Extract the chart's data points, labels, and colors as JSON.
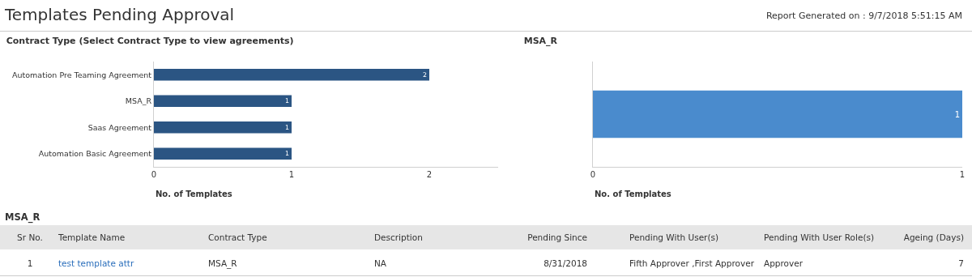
{
  "chart_data": [
    {
      "type": "other",
      "title": "Templates Pending Approval",
      "annotations": [
        "Report Generated on : 9/7/2018 5:51:15 AM"
      ]
    },
    {
      "type": "bar",
      "orientation": "horizontal",
      "title": "Contract Type (Select Contract Type to view agreements)",
      "categories": [
        "Automation Pre Teaming Agreement",
        "MSA_R",
        "Saas Agreement",
        "Automation Basic Agreement"
      ],
      "values": [
        2,
        1,
        1,
        1
      ],
      "color": "#2b5583",
      "xlim": [
        0,
        2.5
      ],
      "xticks": [
        0,
        1,
        2
      ],
      "xlabel": "No. of Templates",
      "data_labels": true,
      "grid": false,
      "legend": false
    },
    {
      "type": "bar",
      "orientation": "horizontal",
      "title": "MSA_R",
      "categories": [
        null
      ],
      "values": [
        1
      ],
      "color": "#4a8bcd",
      "xlim": [
        0,
        1
      ],
      "xticks": [
        0,
        1
      ],
      "xlabel": "No. of Templates",
      "data_labels": true,
      "grid": false,
      "legend": false
    },
    {
      "type": "other",
      "title": "MSA_R",
      "categories": [
        "Sr No.",
        "Template Name",
        "Contract Type",
        "Description",
        "Pending Since",
        "Pending With User(s)",
        "Pending With User Role(s)",
        "Ageing (Days)"
      ],
      "cell_labels": [
        [
          "1",
          "test template attr",
          "MSA_R",
          "NA",
          "8/31/2018",
          "Fifth Approver ,First Approver",
          "Approver",
          "7"
        ]
      ]
    }
  ]
}
